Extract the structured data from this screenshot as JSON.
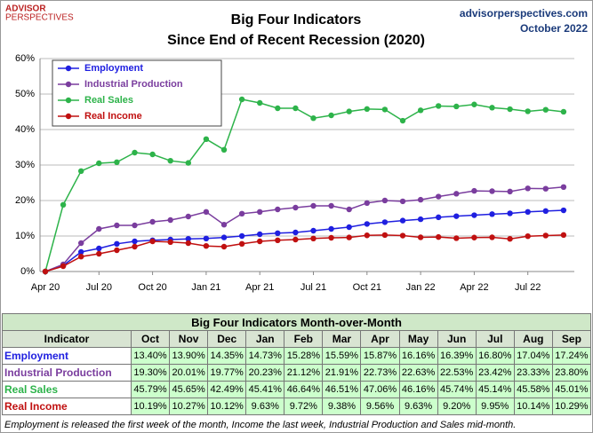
{
  "header": {
    "logo_top": "ADVISOR",
    "logo_bottom": "PERSPECTIVES",
    "site": "advisorperspectives.com",
    "date": "October 2022"
  },
  "chart_data": {
    "type": "line",
    "title": "Big Four Indicators",
    "subtitle": "Since  End of Recent Recession (2020)",
    "categories": [
      "Apr 20",
      null,
      null,
      "Jul 20",
      null,
      null,
      "Oct 20",
      null,
      null,
      "Jan 21",
      null,
      null,
      "Apr 21",
      null,
      null,
      "Jul 21",
      null,
      null,
      "Oct 21",
      null,
      null,
      "Jan 22",
      null,
      null,
      "Apr 22",
      null,
      null,
      "Jul 22",
      null,
      null
    ],
    "ylim": [
      0,
      60
    ],
    "yticks": [
      {
        "value": 0,
        "label": "0%"
      },
      {
        "value": 10,
        "label": "10%"
      },
      {
        "value": 20,
        "label": "20%"
      },
      {
        "value": 30,
        "label": "30%"
      },
      {
        "value": 40,
        "label": "40%"
      },
      {
        "value": 50,
        "label": "50%"
      },
      {
        "value": 60,
        "label": "60%"
      }
    ],
    "grid": true,
    "legend": "top-left",
    "series": [
      {
        "name": "Employment",
        "color": "#1f1fe0",
        "values": [
          0,
          1.7,
          5.5,
          6.5,
          7.8,
          8.5,
          8.8,
          9.0,
          9.2,
          9.3,
          9.6,
          10.0,
          10.5,
          10.8,
          11.0,
          11.5,
          12.0,
          12.5,
          13.4,
          13.9,
          14.35,
          14.73,
          15.28,
          15.59,
          15.87,
          16.16,
          16.39,
          16.8,
          17.04,
          17.24
        ]
      },
      {
        "name": "Industrial Production",
        "color": "#7a3d9e",
        "values": [
          0,
          2.0,
          8.0,
          12.0,
          13.0,
          13.0,
          14.0,
          14.5,
          15.5,
          16.8,
          13.2,
          16.3,
          16.8,
          17.5,
          18.0,
          18.5,
          18.5,
          17.5,
          19.3,
          20.01,
          19.77,
          20.23,
          21.12,
          21.91,
          22.73,
          22.63,
          22.53,
          23.42,
          23.33,
          23.8
        ]
      },
      {
        "name": "Real Sales",
        "color": "#2db34a",
        "values": [
          0,
          18.8,
          28.3,
          30.5,
          30.8,
          33.5,
          33.0,
          31.2,
          30.6,
          37.3,
          34.3,
          48.5,
          47.5,
          46.0,
          46.0,
          43.2,
          44.0,
          45.1,
          45.79,
          45.65,
          42.49,
          45.41,
          46.64,
          46.51,
          47.06,
          46.16,
          45.74,
          45.14,
          45.58,
          45.01
        ]
      },
      {
        "name": "Real Income",
        "color": "#c01010",
        "values": [
          0,
          1.5,
          4.2,
          5.0,
          6.0,
          7.0,
          8.5,
          8.3,
          8.0,
          7.2,
          7.0,
          7.8,
          8.5,
          8.8,
          9.0,
          9.3,
          9.5,
          9.6,
          10.19,
          10.27,
          10.12,
          9.63,
          9.72,
          9.38,
          9.56,
          9.63,
          9.2,
          9.95,
          10.14,
          10.29
        ]
      }
    ]
  },
  "table": {
    "title": "Big Four Indicators Month-over-Month",
    "columns": [
      "Indicator",
      "Oct",
      "Nov",
      "Dec",
      "Jan",
      "Feb",
      "Mar",
      "Apr",
      "May",
      "Jun",
      "Jul",
      "Aug",
      "Sep"
    ],
    "rows": [
      [
        "Employment",
        "13.40%",
        "13.90%",
        "14.35%",
        "14.73%",
        "15.28%",
        "15.59%",
        "15.87%",
        "16.16%",
        "16.39%",
        "16.80%",
        "17.04%",
        "17.24%"
      ],
      [
        "Industrial Production",
        "19.30%",
        "20.01%",
        "19.77%",
        "20.23%",
        "21.12%",
        "21.91%",
        "22.73%",
        "22.63%",
        "22.53%",
        "23.42%",
        "23.33%",
        "23.80%"
      ],
      [
        "Real Sales",
        "45.79%",
        "45.65%",
        "42.49%",
        "45.41%",
        "46.64%",
        "46.51%",
        "47.06%",
        "46.16%",
        "45.74%",
        "45.14%",
        "45.58%",
        "45.01%"
      ],
      [
        "Real Income",
        "10.19%",
        "10.27%",
        "10.12%",
        "9.63%",
        "9.72%",
        "9.38%",
        "9.56%",
        "9.63%",
        "9.20%",
        "9.95%",
        "10.14%",
        "10.29%"
      ]
    ]
  },
  "footnote": "Employment is released the first week of the month, Income the last week, Industrial Production and Sales mid-month."
}
